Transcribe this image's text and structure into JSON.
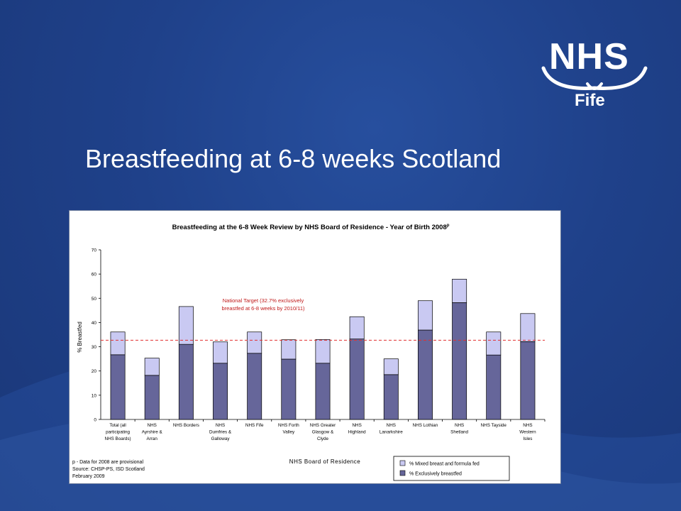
{
  "slide": {
    "title": "Breastfeeding at 6-8 weeks Scotland"
  },
  "logo": {
    "nhs": "NHS",
    "region": "Fife"
  },
  "colors": {
    "background": "#1f418a",
    "exclusive": "#66669a",
    "mixed": "#c9c9f2",
    "target_line": "#e23030",
    "text_white": "#ffffff"
  },
  "chart_data": {
    "type": "bar",
    "stacked": true,
    "title": "Breastfeeding at the 6-8 Week Review by NHS Board of Residence - Year of Birth 2008",
    "title_superscript": "p",
    "xlabel": "NHS Board of Residence",
    "ylabel": "% Breastfed",
    "ylim": [
      0,
      70
    ],
    "yticks": [
      0,
      10,
      20,
      30,
      40,
      50,
      60,
      70
    ],
    "grid": false,
    "legend_position": "bottom-right",
    "categories": [
      [
        "Total (all",
        "participating",
        "NHS Boards)"
      ],
      [
        "NHS",
        "Ayrshire &",
        "Arran"
      ],
      [
        "NHS Borders"
      ],
      [
        "NHS",
        "Dumfries &",
        "Galloway"
      ],
      [
        "NHS Fife"
      ],
      [
        "NHS Forth",
        "Valley"
      ],
      [
        "NHS Greater",
        "Glasgow &",
        "Clyde"
      ],
      [
        "NHS",
        "Highland"
      ],
      [
        "NHS",
        "Lanarkshire"
      ],
      [
        "NHS Lothian"
      ],
      [
        "NHS",
        "Shetland"
      ],
      [
        "NHS Tayside"
      ],
      [
        "NHS",
        "Western",
        "Isles"
      ]
    ],
    "series": [
      {
        "name": "% Exclusively breastfed",
        "values": [
          26.7,
          18.2,
          31.0,
          23.2,
          27.3,
          24.9,
          23.2,
          33.2,
          18.5,
          36.9,
          48.2,
          26.6,
          32.1
        ]
      },
      {
        "name": "% Mixed breast and formula fed",
        "values": [
          9.4,
          7.1,
          15.6,
          8.8,
          8.8,
          8.0,
          9.8,
          9.2,
          6.5,
          12.1,
          9.7,
          9.5,
          11.6
        ]
      }
    ],
    "target": {
      "value": 32.7,
      "label_lines": [
        "National Target (32.7% exclusively",
        "breastfed at 6-8 weeks by 2010/11)"
      ]
    },
    "footnotes": [
      "p - Data for 2008 are provisional",
      "Source: CHSP-PS, ISD Scotland",
      "February 2009"
    ]
  }
}
